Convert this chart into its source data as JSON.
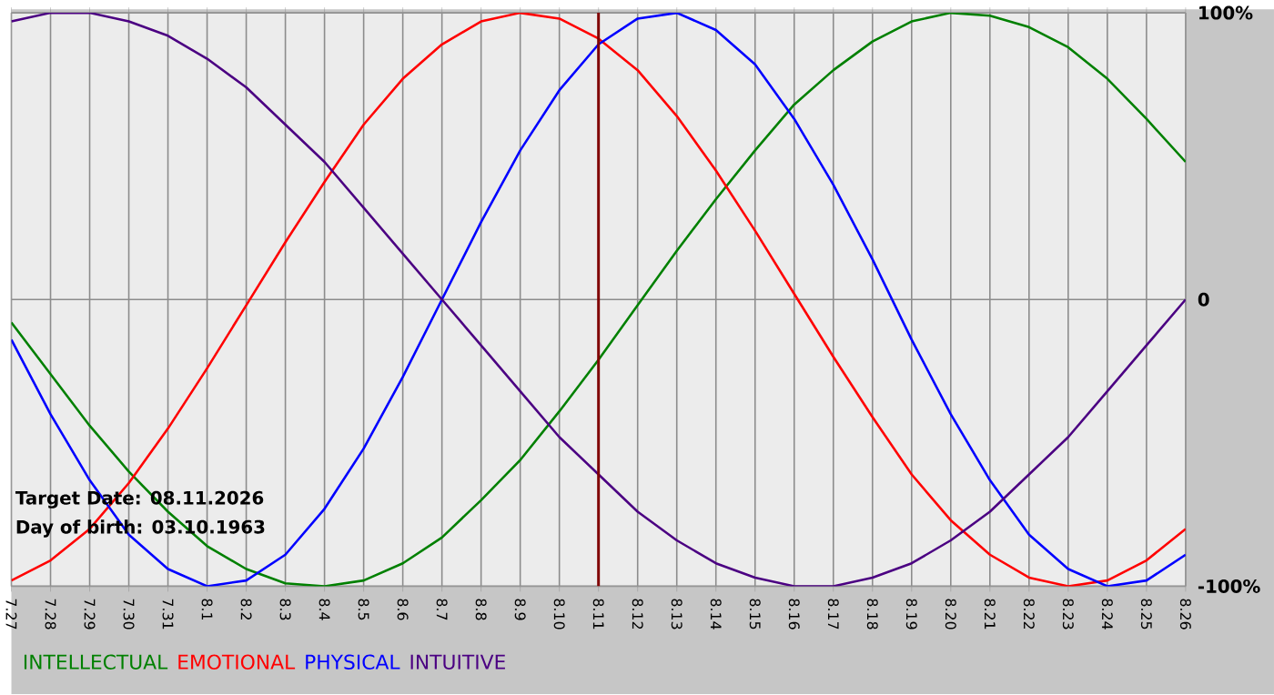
{
  "chart_data": {
    "type": "line",
    "categories": [
      "7.27",
      "7.28",
      "7.29",
      "7.30",
      "7.31",
      "8.1",
      "8.2",
      "8.3",
      "8.4",
      "8.5",
      "8.6",
      "8.7",
      "8.8",
      "8.9",
      "8.10",
      "8.11",
      "8.12",
      "8.13",
      "8.14",
      "8.15",
      "8.16",
      "8.17",
      "8.18",
      "8.19",
      "8.20",
      "8.21",
      "8.22",
      "8.23",
      "8.24",
      "8.25",
      "8.26"
    ],
    "series": [
      {
        "name": "INTELLECTUAL",
        "color": "#008000",
        "values": [
          -8,
          -26,
          -44,
          -60,
          -74,
          -86,
          -94,
          -99,
          -100,
          -98,
          -92,
          -83,
          -70,
          -56,
          -39,
          -21,
          -2,
          17,
          35,
          52,
          68,
          80,
          90,
          97,
          100,
          99,
          95,
          88,
          77,
          63,
          48
        ]
      },
      {
        "name": "EMOTIONAL",
        "color": "#ff0000",
        "values": [
          -98,
          -91,
          -80,
          -64,
          -45,
          -24,
          -2,
          20,
          41,
          61,
          77,
          89,
          97,
          100,
          98,
          91,
          80,
          64,
          45,
          24,
          2,
          -20,
          -41,
          -61,
          -77,
          -89,
          -97,
          -100,
          -98,
          -91,
          -80
        ]
      },
      {
        "name": "PHYSICAL",
        "color": "#0000ff",
        "values": [
          -14,
          -40,
          -63,
          -82,
          -94,
          -100,
          -98,
          -89,
          -73,
          -52,
          -27,
          0,
          27,
          52,
          73,
          89,
          98,
          100,
          94,
          82,
          63,
          40,
          14,
          -14,
          -40,
          -63,
          -82,
          -94,
          -100,
          -98,
          -89
        ]
      },
      {
        "name": "INTUITIVE",
        "color": "#4b0082",
        "values": [
          97,
          100,
          100,
          97,
          92,
          84,
          74,
          61,
          48,
          32,
          16,
          0,
          -16,
          -32,
          -48,
          -61,
          -74,
          -84,
          -92,
          -97,
          -100,
          -100,
          -97,
          -92,
          -84,
          -74,
          -61,
          -48,
          -32,
          -16,
          0
        ]
      }
    ],
    "ylim": [
      -100,
      100
    ],
    "yticks": [
      {
        "value": 100,
        "label": "100%"
      },
      0,
      {
        "value": -100,
        "label": "-100%"
      }
    ],
    "grid": true,
    "legend": "bottom",
    "ref_lines": [
      {
        "axis": "x",
        "value": "8.11",
        "color": "#800000"
      }
    ],
    "annotations": [
      "Target Date: 08.11.2026",
      "Day of birth: 03.10.1963"
    ]
  }
}
